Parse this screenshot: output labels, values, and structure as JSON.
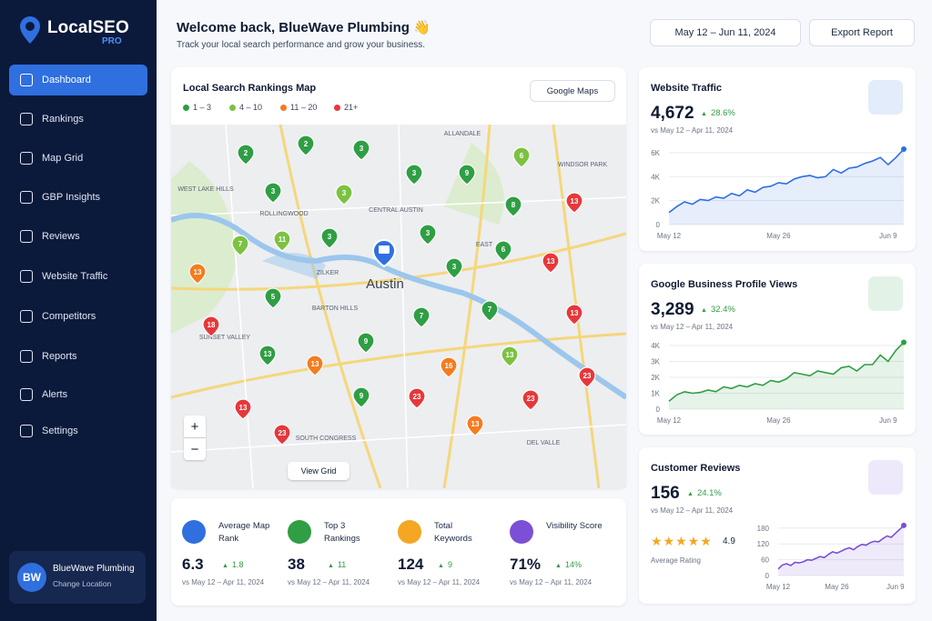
{
  "sidebar": {
    "logo": "LocalSEO",
    "badge": "PRO",
    "nav": [
      "Dashboard",
      "Rankings",
      "Map Grid",
      "GBP Insights",
      "Reviews",
      "Website Traffic",
      "Competitors",
      "Reports",
      "Alerts",
      "Settings"
    ],
    "user": {
      "initials": "BW",
      "name": "BlueWave Plumbing",
      "action": "Change Location"
    }
  },
  "header": {
    "title": "Welcome back, BlueWave Plumbing 👋",
    "subtitle": "Track your local search performance and grow your business.",
    "date_range": "May 12 – Jun 11, 2024",
    "export": "Export Report"
  },
  "map": {
    "title": "Local Search Rankings Map",
    "source": "Google Maps",
    "legend": [
      {
        "label": "1 – 3",
        "color": "#2f9e44"
      },
      {
        "label": "4 – 10",
        "color": "#7cc242"
      },
      {
        "label": "11 – 20",
        "color": "#f47c20"
      },
      {
        "label": "21+",
        "color": "#e5383b"
      }
    ],
    "places": [
      "ALLANDALE",
      "WINDSOR PARK",
      "WEST LAKE HILLS",
      "ROLLINGWOOD",
      "CENTRAL AUSTIN",
      "EAST",
      "ZILKER",
      "BARTON HILLS",
      "SUNSET VALLEY",
      "SOUTH CONGRESS",
      "DEL VALLE"
    ],
    "city": "Austin",
    "pins": [
      {
        "label": "2",
        "color": "#2f9e44"
      },
      {
        "label": "2",
        "color": "#2f9e44"
      },
      {
        "label": "3",
        "color": "#2f9e44"
      },
      {
        "label": "6",
        "color": "#7cc242"
      },
      {
        "label": "3",
        "color": "#2f9e44"
      },
      {
        "label": "9",
        "color": "#2f9e44"
      },
      {
        "label": "3",
        "color": "#2f9e44"
      },
      {
        "label": "3",
        "color": "#7cc242"
      },
      {
        "label": "8",
        "color": "#2f9e44"
      },
      {
        "label": "13",
        "color": "#e5383b"
      },
      {
        "label": "3",
        "color": "#2f9e44"
      },
      {
        "label": "3",
        "color": "#2f9e44"
      },
      {
        "label": "7",
        "color": "#7cc242"
      },
      {
        "label": "11",
        "color": "#7cc242"
      },
      {
        "label": "6",
        "color": "#2f9e44"
      },
      {
        "label": "13",
        "color": "#f47c20"
      },
      {
        "label": "3",
        "color": "#2f9e44"
      },
      {
        "label": "13",
        "color": "#e5383b"
      },
      {
        "label": "5",
        "color": "#2f9e44"
      },
      {
        "label": "7",
        "color": "#2f9e44"
      },
      {
        "label": "7",
        "color": "#2f9e44"
      },
      {
        "label": "13",
        "color": "#e5383b"
      },
      {
        "label": "18",
        "color": "#e5383b"
      },
      {
        "label": "9",
        "color": "#2f9e44"
      },
      {
        "label": "13",
        "color": "#2f9e44"
      },
      {
        "label": "13",
        "color": "#f47c20"
      },
      {
        "label": "13",
        "color": "#7cc242"
      },
      {
        "label": "16",
        "color": "#f47c20"
      },
      {
        "label": "23",
        "color": "#e5383b"
      },
      {
        "label": "9",
        "color": "#2f9e44"
      },
      {
        "label": "23",
        "color": "#e5383b"
      },
      {
        "label": "23",
        "color": "#e5383b"
      },
      {
        "label": "13",
        "color": "#e5383b"
      },
      {
        "label": "23",
        "color": "#e5383b"
      },
      {
        "label": "13",
        "color": "#f47c20"
      }
    ],
    "zoom_in": "+",
    "zoom_out": "−",
    "view_grid": "View Grid"
  },
  "stats": [
    {
      "label": "Average Map Rank",
      "value": 6.3,
      "change": 1.8,
      "compare": "vs May 12 – Apr 11, 2024",
      "color": "#2f6fe0"
    },
    {
      "label": "Top 3 Rankings",
      "value": 38,
      "change": 11,
      "compare": "vs May 12 – Apr 11, 2024",
      "color": "#2f9e44"
    },
    {
      "label": "Total Keywords",
      "value": 124,
      "change": 9,
      "compare": "vs May 12 – Apr 11, 2024",
      "color": "#f5a623"
    },
    {
      "label": "Visibility Score",
      "value": "71%",
      "change": "14%",
      "compare": "vs May 12 – Apr 11, 2024",
      "color": "#7b4fd6"
    }
  ],
  "chart_data": [
    {
      "type": "line",
      "title": "Website Traffic",
      "value": "4,672",
      "change": "28.6%",
      "compare": "vs May 12 – Apr 11, 2024",
      "color": "#2f6fe0",
      "x": [
        0,
        1,
        2,
        3,
        4,
        5,
        6,
        7,
        8,
        9,
        10,
        11,
        12,
        13,
        14,
        15,
        16,
        17,
        18,
        19,
        20,
        21,
        22,
        23,
        24,
        25,
        26,
        27,
        28,
        29,
        30
      ],
      "values": [
        1000,
        1500,
        1900,
        1700,
        2100,
        2000,
        2300,
        2200,
        2600,
        2400,
        2900,
        2700,
        3100,
        3200,
        3500,
        3400,
        3800,
        4000,
        4100,
        3900,
        4000,
        4600,
        4300,
        4700,
        4800,
        5100,
        5300,
        5600,
        5000,
        5600,
        6300
      ],
      "xlim": [
        0,
        30
      ],
      "xticks": [
        {
          "value": 0,
          "label": "May 12"
        },
        {
          "value": 14,
          "label": "May 26"
        },
        {
          "value": 28,
          "label": "Jun 9"
        }
      ],
      "ylim": [
        0,
        6600
      ],
      "yticks": [
        0,
        {
          "value": 2000,
          "label": "2K"
        },
        {
          "value": 4000,
          "label": "4K"
        },
        {
          "value": 6000,
          "label": "6K"
        }
      ],
      "grid": true
    },
    {
      "type": "line",
      "title": "Google Business Profile Views",
      "value": "3,289",
      "change": "32.4%",
      "compare": "vs May 12 – Apr 11, 2024",
      "color": "#2f9e44",
      "x": [
        0,
        1,
        2,
        3,
        4,
        5,
        6,
        7,
        8,
        9,
        10,
        11,
        12,
        13,
        14,
        15,
        16,
        17,
        18,
        19,
        20,
        21,
        22,
        23,
        24,
        25,
        26,
        27,
        28,
        29,
        30
      ],
      "values": [
        500,
        900,
        1100,
        1000,
        1050,
        1200,
        1100,
        1400,
        1300,
        1500,
        1400,
        1600,
        1500,
        1800,
        1700,
        1900,
        2300,
        2200,
        2100,
        2400,
        2300,
        2200,
        2600,
        2700,
        2400,
        2800,
        2800,
        3400,
        3000,
        3700,
        4200
      ],
      "xlim": [
        0,
        30
      ],
      "xticks": [
        {
          "value": 0,
          "label": "May 12"
        },
        {
          "value": 14,
          "label": "May 26"
        },
        {
          "value": 28,
          "label": "Jun 9"
        }
      ],
      "ylim": [
        0,
        4400
      ],
      "yticks": [
        0,
        {
          "value": 1000,
          "label": "1K"
        },
        {
          "value": 2000,
          "label": "2K"
        },
        {
          "value": 3000,
          "label": "3K"
        },
        {
          "value": 4000,
          "label": "4K"
        }
      ],
      "grid": true
    },
    {
      "type": "line",
      "title": "Customer Reviews",
      "value": 156,
      "change": "24.1%",
      "compare": "vs May 12 – Apr 11, 2024",
      "color": "#7b4fd6",
      "rating": 4.9,
      "rating_label": "Average Rating",
      "x": [
        0,
        1,
        2,
        3,
        4,
        5,
        6,
        7,
        8,
        9,
        10,
        11,
        12,
        13,
        14,
        15,
        16,
        17,
        18,
        19,
        20,
        21,
        22,
        23,
        24,
        25,
        26,
        27,
        28,
        29,
        30
      ],
      "values": [
        25,
        40,
        45,
        38,
        50,
        48,
        52,
        60,
        58,
        65,
        72,
        68,
        80,
        90,
        85,
        92,
        100,
        105,
        98,
        110,
        118,
        115,
        125,
        130,
        128,
        140,
        150,
        145,
        160,
        175,
        190
      ],
      "xlim": [
        0,
        30
      ],
      "xticks": [
        {
          "value": 0,
          "label": "May 12"
        },
        {
          "value": 14,
          "label": "May 26"
        },
        {
          "value": 28,
          "label": "Jun 9"
        }
      ],
      "ylim": [
        0,
        200
      ],
      "yticks": [
        0,
        60,
        120,
        180
      ],
      "grid": true
    }
  ]
}
